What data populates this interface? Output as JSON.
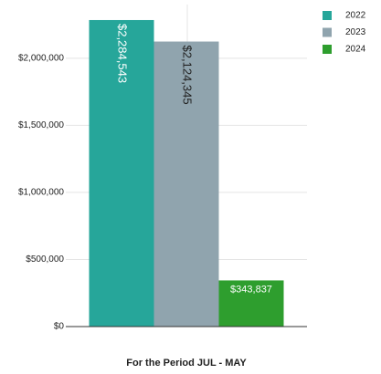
{
  "chart_data": {
    "type": "bar",
    "x_label": "For the Period JUL - MAY",
    "categories": [
      null
    ],
    "series": [
      {
        "name": "2022",
        "color": "#26a69a",
        "values": [
          2284543
        ],
        "value_labels": [
          "$2,284,543"
        ]
      },
      {
        "name": "2023",
        "color": "#90a4ae",
        "values": [
          2124345
        ],
        "value_labels": [
          "$2,124,345"
        ]
      },
      {
        "name": "2024",
        "color": "#2e9e2e",
        "values": [
          343837
        ],
        "value_labels": [
          "$343,837"
        ]
      }
    ],
    "ylim": [
      0,
      2400000
    ],
    "yticks": [
      {
        "value": 0,
        "label": "$0"
      },
      {
        "value": 500000,
        "label": "$500,000"
      },
      {
        "value": 1000000,
        "label": "$1,000,000"
      },
      {
        "value": 1500000,
        "label": "$1,500,000"
      },
      {
        "value": 2000000,
        "label": "$2,000,000"
      }
    ],
    "grid": true,
    "legend": "top-right"
  }
}
